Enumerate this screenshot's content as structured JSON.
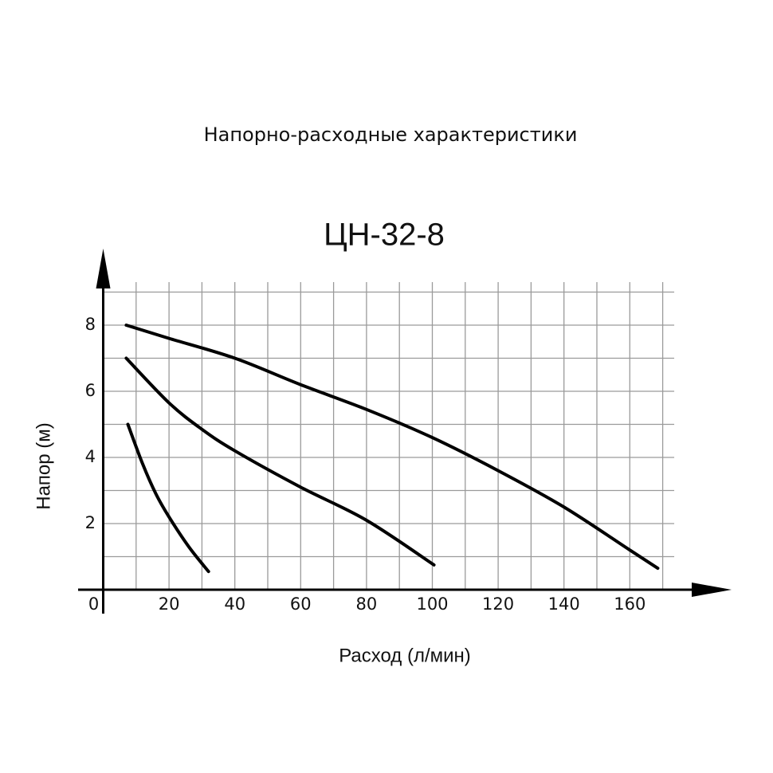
{
  "chart_data": {
    "type": "line",
    "title": "Напорно-расходные характеристики",
    "subtitle": "ЦН-32-8",
    "x_label": "Расход (л/мин)",
    "y_label": "Напор (м)",
    "series": [
      {
        "color": "#000000",
        "x": [
          7,
          20,
          40,
          60,
          80,
          100,
          120,
          140,
          160,
          168.5
        ],
        "values": [
          8.0,
          7.6,
          7.0,
          6.2,
          5.45,
          4.6,
          3.6,
          2.5,
          1.2,
          0.65
        ]
      },
      {
        "color": "#000000",
        "x": [
          7,
          20,
          30,
          40,
          60,
          80,
          100.5
        ],
        "values": [
          7.0,
          5.65,
          4.85,
          4.2,
          3.1,
          2.1,
          0.75
        ]
      },
      {
        "color": "#000000",
        "x": [
          7.5,
          12,
          16,
          20,
          26,
          32
        ],
        "values": [
          5.0,
          3.8,
          2.9,
          2.2,
          1.3,
          0.55
        ]
      }
    ],
    "xlim": [
      0,
      173.5
    ],
    "ylim": [
      0,
      9.3
    ],
    "xticks": [
      0,
      20,
      40,
      60,
      80,
      100,
      120,
      140,
      160
    ],
    "yticks": [
      2,
      4,
      6,
      8
    ],
    "x_minor_ticks": [
      10,
      20,
      30,
      40,
      50,
      60,
      70,
      80,
      90,
      100,
      110,
      120,
      130,
      140,
      150,
      160,
      170
    ],
    "y_minor_ticks": [
      1,
      2,
      3,
      4,
      5,
      6,
      7,
      8,
      9
    ],
    "grid": true,
    "grid_color": "#9a9a9a"
  }
}
